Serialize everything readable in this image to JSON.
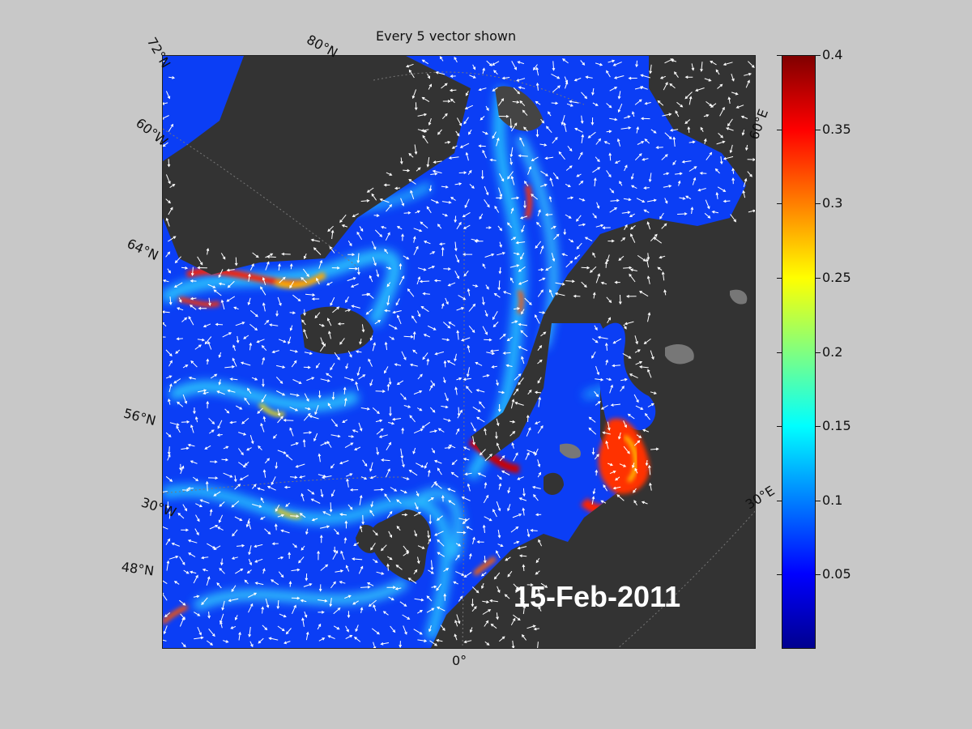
{
  "title": "Every 5 vector shown",
  "date": "15-Feb-2011",
  "lat_labels": [
    "72°N",
    "80°N",
    "64°N",
    "56°N",
    "48°N"
  ],
  "lon_labels": [
    "60°W",
    "30°W",
    "0°",
    "30°E",
    "60°E"
  ],
  "colorbar": {
    "ticks": [
      "0.4",
      "0.35",
      "0.3",
      "0.25",
      "0.2",
      "0.15",
      "0.1",
      "0.05"
    ],
    "min": 0,
    "max": 0.4,
    "colormap": "jet"
  },
  "colors": {
    "land": "#333333",
    "ocean_base": "#0a3dfa",
    "background": "#c8c8c8",
    "vectors": "#ffffff"
  }
}
